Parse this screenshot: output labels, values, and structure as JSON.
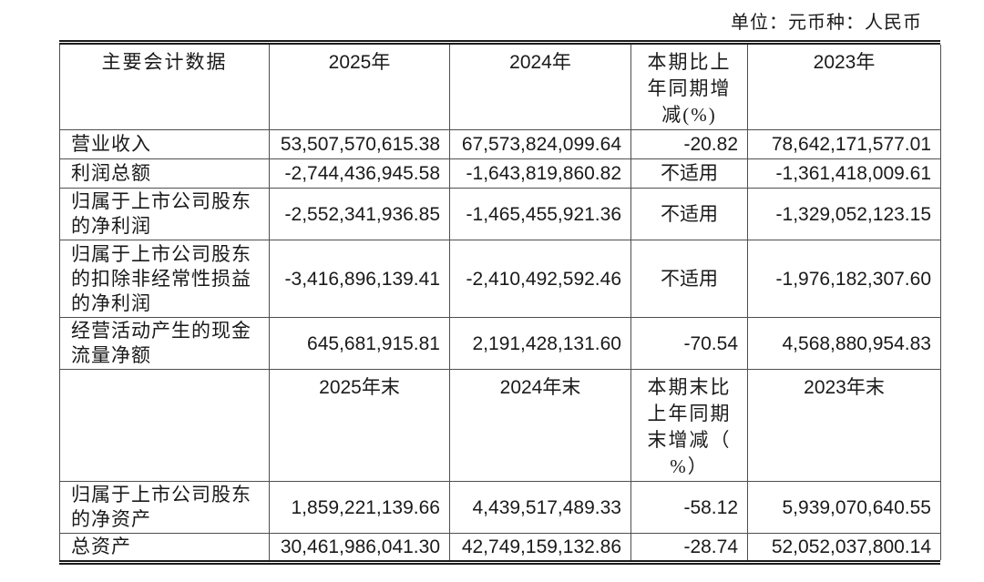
{
  "unit_note": "单位：元币种：人民币",
  "table": {
    "header_annual": {
      "indicator": "主要会计数据",
      "y2025": "2025年",
      "y2024": "2024年",
      "change": "本期比上\n年同期增\n减(%)",
      "y2023": "2023年"
    },
    "annual_rows": [
      {
        "label": "营业收入",
        "y2025": "53,507,570,615.38",
        "y2024": "67,573,824,099.64",
        "change": "-20.82",
        "y2023": "78,642,171,577.01"
      },
      {
        "label": "利润总额",
        "y2025": "-2,744,436,945.58",
        "y2024": "-1,643,819,860.82",
        "change": "不适用",
        "y2023": "-1,361,418,009.61"
      },
      {
        "label": "归属于上市公司股东\n的净利润",
        "y2025": "-2,552,341,936.85",
        "y2024": "-1,465,455,921.36",
        "change": "不适用",
        "y2023": "-1,329,052,123.15"
      },
      {
        "label": "归属于上市公司股东\n的扣除非经常性损益\n的净利润",
        "y2025": "-3,416,896,139.41",
        "y2024": "-2,410,492,592.46",
        "change": "不适用",
        "y2023": "-1,976,182,307.60"
      },
      {
        "label": "经营活动产生的现金\n流量净额",
        "y2025": "645,681,915.81",
        "y2024": "2,191,428,131.60",
        "change": "-70.54",
        "y2023": "4,568,880,954.83"
      }
    ],
    "header_period_end": {
      "indicator": "",
      "y2025": "2025年末",
      "y2024": "2024年末",
      "change": "本期末比\n上年同期\n末增减（\n%）",
      "y2023": "2023年末"
    },
    "period_end_rows": [
      {
        "label": "归属于上市公司股东\n的净资产",
        "y2025": "1,859,221,139.66",
        "y2024": "4,439,517,489.33",
        "change": "-58.12",
        "y2023": "5,939,070,640.55"
      },
      {
        "label": "总资产",
        "y2025": "30,461,986,041.30",
        "y2024": "42,749,159,132.86",
        "change": "-28.74",
        "y2023": "52,052,037,800.14"
      }
    ]
  }
}
